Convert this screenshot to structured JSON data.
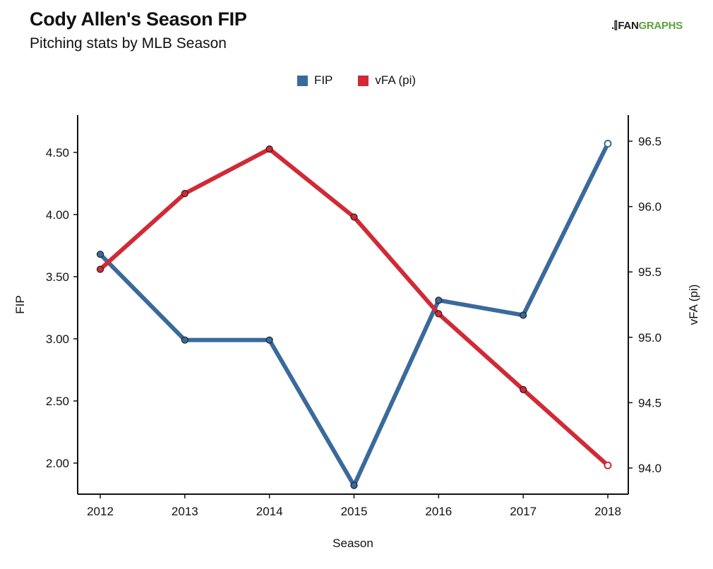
{
  "header": {
    "title": "Cody Allen's Season FIP",
    "subtitle": "Pitching stats by MLB Season"
  },
  "logo": {
    "mark": ".⫿",
    "fan": "FAN",
    "graphs": "GRAPHS"
  },
  "colors": {
    "fip": "#3a6a9c",
    "vfa": "#d12a36",
    "axis": "#111111",
    "marker_stroke": "#222222"
  },
  "chart_data": {
    "type": "line",
    "xlabel": "Season",
    "ylabel": "FIP",
    "y2label": "vFA (pi)",
    "x": [
      2012,
      2013,
      2014,
      2015,
      2016,
      2017,
      2018
    ],
    "ylim": [
      1.75,
      4.8
    ],
    "y2lim": [
      93.8,
      96.7
    ],
    "yticks": [
      2.0,
      2.5,
      3.0,
      3.5,
      4.0,
      4.5
    ],
    "ytick_labels": [
      "2.00",
      "2.50",
      "3.00",
      "3.50",
      "4.00",
      "4.50"
    ],
    "y2ticks": [
      94.0,
      94.5,
      95.0,
      95.5,
      96.0,
      96.5
    ],
    "y2tick_labels": [
      "94.0",
      "94.5",
      "95.0",
      "95.5",
      "96.0",
      "96.5"
    ],
    "legend_position": "top-center",
    "series": [
      {
        "name": "FIP",
        "axis": "left",
        "values": [
          3.68,
          2.99,
          2.99,
          1.82,
          3.31,
          3.19,
          4.57
        ],
        "open_last": true
      },
      {
        "name": "vFA (pi)",
        "axis": "right",
        "values": [
          95.52,
          96.1,
          96.44,
          95.92,
          95.18,
          94.6,
          94.02
        ],
        "open_last": true
      }
    ]
  }
}
